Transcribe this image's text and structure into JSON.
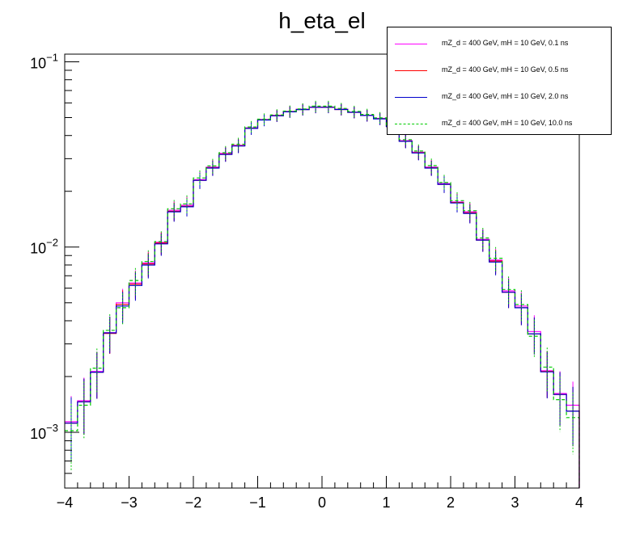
{
  "chart_data": {
    "type": "step-histogram",
    "title": "h_eta_el",
    "xlabel": "",
    "ylabel": "",
    "xlim": [
      -4,
      4
    ],
    "ylim": [
      0.0005,
      0.11
    ],
    "yscale": "log",
    "grid": false,
    "legend_position": "top-right",
    "x_ticks": [
      -4,
      -3,
      -2,
      -1,
      0,
      1,
      2,
      3,
      4
    ],
    "y_ticks": [
      {
        "value": 0.001,
        "base": "10",
        "exp": "-3"
      },
      {
        "value": 0.01,
        "base": "10",
        "exp": "-2"
      },
      {
        "value": 0.1,
        "base": "10",
        "exp": "-1"
      }
    ],
    "bin_edges": [
      -4.0,
      -3.8,
      -3.6,
      -3.4,
      -3.2,
      -3.0,
      -2.8,
      -2.6,
      -2.4,
      -2.2,
      -2.0,
      -1.8,
      -1.6,
      -1.4,
      -1.2,
      -1.0,
      -0.8,
      -0.6,
      -0.4,
      -0.2,
      0.0,
      0.2,
      0.4,
      0.6,
      0.8,
      1.0,
      1.2,
      1.4,
      1.6,
      1.8,
      2.0,
      2.2,
      2.4,
      2.6,
      2.8,
      3.0,
      3.2,
      3.4,
      3.6,
      3.8,
      4.0
    ],
    "series": [
      {
        "name": "mZ_d = 400 GeV, mH = 10 GeV, 0.1 ns",
        "color": "#ff00ff",
        "dash": false,
        "values": [
          0.00114,
          0.00148,
          0.00213,
          0.00345,
          0.005,
          0.0064,
          0.0082,
          0.0106,
          0.0158,
          0.0168,
          0.0231,
          0.027,
          0.032,
          0.0354,
          0.044,
          0.0488,
          0.0515,
          0.054,
          0.0555,
          0.057,
          0.057,
          0.0555,
          0.0535,
          0.0515,
          0.0495,
          0.045,
          0.0375,
          0.0325,
          0.027,
          0.022,
          0.0175,
          0.0155,
          0.011,
          0.0085,
          0.0058,
          0.0048,
          0.0035,
          0.00215,
          0.00162,
          0.0014
        ]
      },
      {
        "name": "mZ_d = 400 GeV, mH = 10 GeV, 0.5 ns",
        "color": "#ff0000",
        "dash": false,
        "values": [
          0.00112,
          0.00146,
          0.00211,
          0.00342,
          0.0049,
          0.0063,
          0.0081,
          0.0105,
          0.0156,
          0.0166,
          0.0229,
          0.0268,
          0.0317,
          0.0352,
          0.0438,
          0.0486,
          0.0512,
          0.0538,
          0.0553,
          0.0568,
          0.0569,
          0.0553,
          0.0534,
          0.0513,
          0.0493,
          0.0447,
          0.0373,
          0.0323,
          0.0268,
          0.0218,
          0.0174,
          0.0153,
          0.0109,
          0.0084,
          0.0057,
          0.0047,
          0.0034,
          0.00213,
          0.0016,
          0.0013
        ]
      },
      {
        "name": "mZ_d = 400 GeV, mH = 10 GeV, 2.0 ns",
        "color": "#0000cc",
        "dash": false,
        "values": [
          0.00112,
          0.00146,
          0.00211,
          0.00344,
          0.0048,
          0.0062,
          0.008,
          0.0104,
          0.0155,
          0.0165,
          0.0229,
          0.0267,
          0.0316,
          0.0351,
          0.0437,
          0.0485,
          0.0511,
          0.0537,
          0.0552,
          0.0568,
          0.0568,
          0.0553,
          0.0534,
          0.0513,
          0.0492,
          0.0447,
          0.0372,
          0.0322,
          0.0267,
          0.0218,
          0.0173,
          0.0152,
          0.0109,
          0.0083,
          0.0057,
          0.0047,
          0.0034,
          0.00212,
          0.0016,
          0.0013
        ]
      },
      {
        "name": "mZ_d = 400 GeV, mH = 10 GeV, 10.0 ns",
        "color": "#00cc00",
        "dash": true,
        "values": [
          0.00102,
          0.0014,
          0.00222,
          0.00355,
          0.0047,
          0.0066,
          0.00835,
          0.0107,
          0.0161,
          0.0171,
          0.0236,
          0.0274,
          0.0323,
          0.0359,
          0.0445,
          0.049,
          0.0517,
          0.0542,
          0.0557,
          0.0576,
          0.0576,
          0.056,
          0.054,
          0.052,
          0.0498,
          0.0456,
          0.038,
          0.033,
          0.0275,
          0.0223,
          0.0178,
          0.0157,
          0.0112,
          0.0087,
          0.0059,
          0.0049,
          0.0033,
          0.00225,
          0.0015,
          0.0012
        ]
      }
    ]
  }
}
